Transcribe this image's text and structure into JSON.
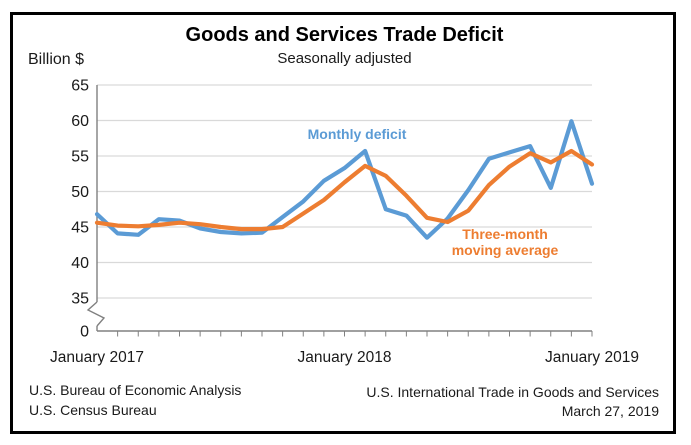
{
  "header": {
    "title": "Goods and Services Trade Deficit",
    "subtitle": "Seasonally adjusted"
  },
  "axes": {
    "y_title": "Billion $",
    "y_ticks": [
      0,
      35,
      40,
      45,
      50,
      55,
      60,
      65
    ],
    "x_tick_labels": [
      {
        "index": 0,
        "label": "January 2017"
      },
      {
        "index": 12,
        "label": "January 2018"
      },
      {
        "index": 24,
        "label": "January 2019"
      }
    ]
  },
  "chart_data": {
    "type": "line",
    "title": "Goods and Services Trade Deficit",
    "subtitle": "Seasonally adjusted",
    "ylabel": "Billion $",
    "ylim": [
      0,
      65
    ],
    "y_axis_break_between": [
      0,
      35
    ],
    "grid": true,
    "legend": "inline-labels",
    "categories": [
      "January 2017",
      "February 2017",
      "March 2017",
      "April 2017",
      "May 2017",
      "June 2017",
      "July 2017",
      "August 2017",
      "September 2017",
      "October 2017",
      "November 2017",
      "December 2017",
      "January 2018",
      "February 2018",
      "March 2018",
      "April 2018",
      "May 2018",
      "June 2018",
      "July 2018",
      "August 2018",
      "September 2018",
      "October 2018",
      "November 2018",
      "December 2018",
      "January 2019"
    ],
    "series": [
      {
        "name": "Monthly deficit",
        "color": "#5B9BD5",
        "values": [
          46.8,
          44.1,
          43.9,
          46.1,
          45.9,
          44.8,
          44.3,
          44.1,
          44.2,
          46.4,
          48.6,
          51.5,
          53.3,
          55.7,
          47.5,
          46.6,
          43.5,
          46.2,
          50.2,
          54.6,
          55.5,
          56.4,
          50.5,
          59.9,
          51.1
        ]
      },
      {
        "name": "Three-month moving average",
        "color": "#ED7D31",
        "values": [
          45.6,
          45.2,
          45.1,
          45.3,
          45.6,
          45.4,
          45.0,
          44.7,
          44.7,
          45.0,
          46.9,
          48.8,
          51.3,
          53.6,
          52.2,
          49.4,
          46.3,
          45.7,
          47.3,
          50.9,
          53.5,
          55.4,
          54.1,
          55.7,
          53.8
        ]
      }
    ]
  },
  "annotations": {
    "monthly_label": "Monthly deficit",
    "ma_label_line1": "Three-month",
    "ma_label_line2": "moving average"
  },
  "footer": {
    "left_line1": "U.S. Bureau of Economic Analysis",
    "left_line2": "U.S. Census Bureau",
    "right_line1": "U.S. International Trade in Goods and Services",
    "right_line2": "March 27, 2019"
  },
  "colors": {
    "monthly_line": "#5B9BD5",
    "moving_average_line": "#ED7D31",
    "gridline": "#D9D9D9",
    "axis": "#808080",
    "text": "#1a1a1a",
    "border": "#000000"
  }
}
